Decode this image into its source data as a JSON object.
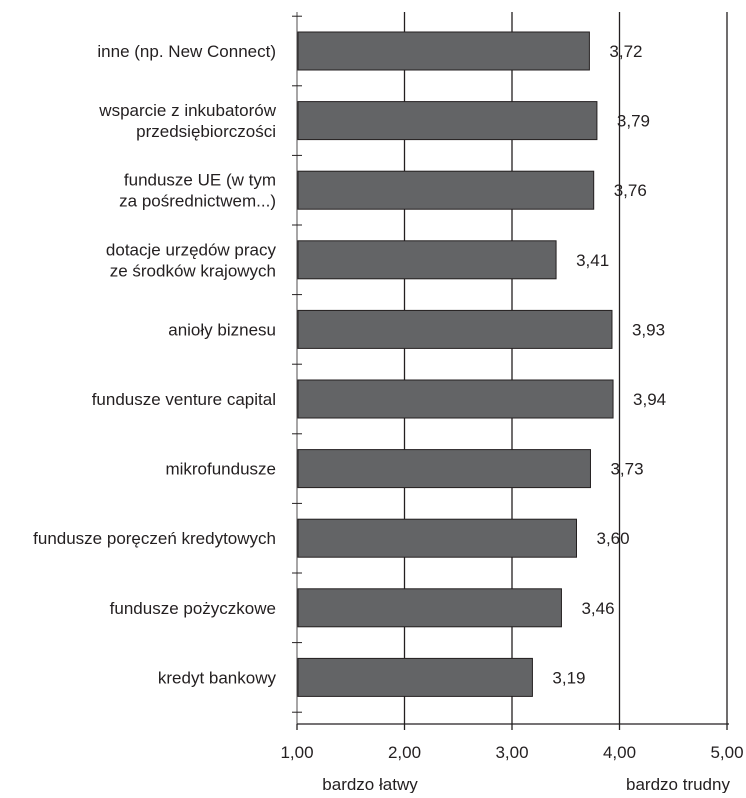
{
  "chart_data": {
    "type": "bar",
    "orientation": "horizontal",
    "categories": [
      [
        "inne (np. New Connect)"
      ],
      [
        "wsparcie z inkubatorów",
        "przedsiębiorczości"
      ],
      [
        "fundusze UE (w tym",
        "za pośrednictwem...)"
      ],
      [
        "dotacje urzędów pracy",
        "ze środków krajowych"
      ],
      [
        "anioły biznesu"
      ],
      [
        "fundusze venture capital"
      ],
      [
        "mikrofundusze"
      ],
      [
        "fundusze poręczeń kredytowych"
      ],
      [
        "fundusze pożyczkowe"
      ],
      [
        "kredyt bankowy"
      ]
    ],
    "values": [
      3.72,
      3.79,
      3.76,
      3.41,
      3.93,
      3.94,
      3.73,
      3.6,
      3.46,
      3.19
    ],
    "value_labels": [
      "3,72",
      "3,79",
      "3,76",
      "3,41",
      "3,93",
      "3,94",
      "3,73",
      "3,60",
      "3,46",
      "3,19"
    ],
    "xlim": [
      1.0,
      5.0
    ],
    "xticks": [
      1.0,
      2.0,
      3.0,
      4.0,
      5.0
    ],
    "xtick_labels": [
      "1,00",
      "2,00",
      "3,00",
      "4,00",
      "5,00"
    ],
    "axis_end_labels": {
      "left": "bardzo łatwy",
      "right": "bardzo trudny"
    },
    "grid": "vertical",
    "legend": "none",
    "colors": {
      "bar": "#636466",
      "bar_stroke": "#231f20",
      "grid": "#231f20",
      "text": "#231f20"
    }
  }
}
